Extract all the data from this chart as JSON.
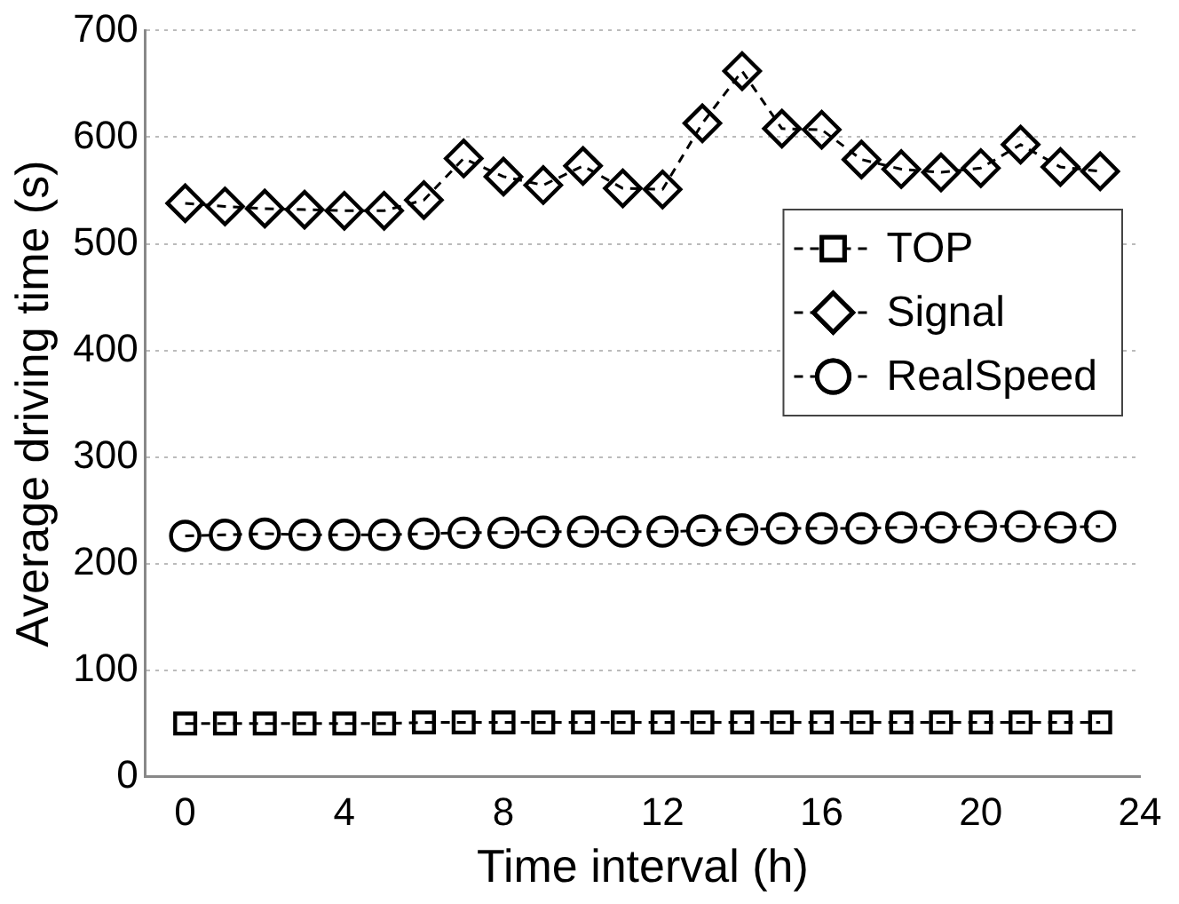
{
  "chart_data": {
    "type": "line",
    "xlabel": "Time interval (h)",
    "ylabel": "Average driving time (s)",
    "x": [
      0,
      1,
      2,
      3,
      4,
      5,
      6,
      7,
      8,
      9,
      10,
      11,
      12,
      13,
      14,
      15,
      16,
      17,
      18,
      19,
      20,
      21,
      22,
      23
    ],
    "series": [
      {
        "name": "TOP",
        "color": "#000000",
        "marker": "square",
        "values": [
          50,
          50,
          50,
          50,
          50,
          50,
          51,
          51,
          51,
          51,
          51,
          51,
          51,
          51,
          51,
          51,
          51,
          51,
          51,
          51,
          51,
          51,
          51,
          51
        ]
      },
      {
        "name": "Signal",
        "color": "#000000",
        "marker": "diamond",
        "values": [
          538,
          535,
          533,
          532,
          531,
          531,
          541,
          580,
          563,
          555,
          573,
          552,
          551,
          613,
          662,
          608,
          607,
          579,
          570,
          567,
          571,
          593,
          572,
          568
        ]
      },
      {
        "name": "RealSpeed",
        "color": "#000000",
        "marker": "circle",
        "values": [
          226,
          227,
          228,
          227,
          227,
          227,
          228,
          229,
          229,
          230,
          230,
          230,
          230,
          231,
          232,
          233,
          233,
          233,
          234,
          234,
          235,
          235,
          234,
          235
        ]
      }
    ],
    "xlim": [
      -1,
      24
    ],
    "xticks": [
      0,
      4,
      8,
      12,
      16,
      20,
      24
    ],
    "ylim": [
      0,
      700
    ],
    "yticks": [
      0,
      100,
      200,
      300,
      400,
      500,
      600,
      700
    ],
    "grid": "y",
    "legend": "right",
    "line_style": "dashed"
  }
}
